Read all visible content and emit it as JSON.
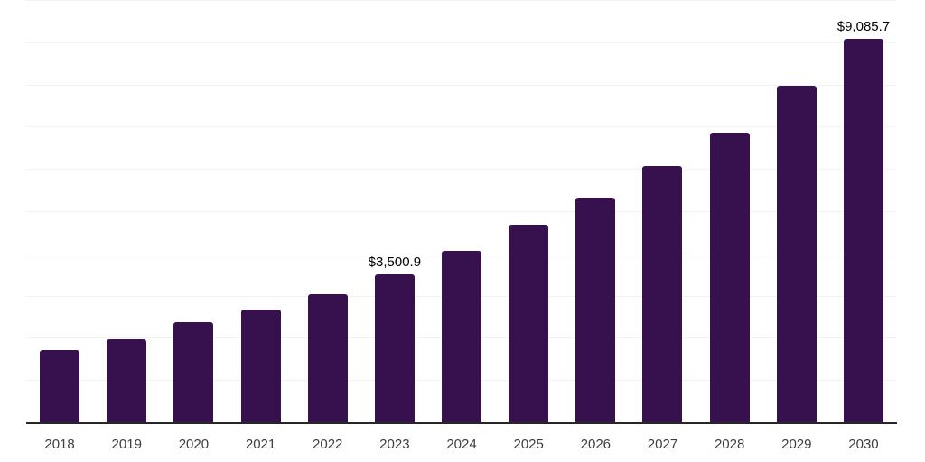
{
  "chart_data": {
    "type": "bar",
    "title": "",
    "xlabel": "",
    "ylabel": "",
    "categories": [
      "2018",
      "2019",
      "2020",
      "2021",
      "2022",
      "2023",
      "2024",
      "2025",
      "2026",
      "2027",
      "2028",
      "2029",
      "2030"
    ],
    "values": [
      1705,
      1960,
      2365,
      2665,
      3025,
      3500.9,
      4070,
      4690,
      5330,
      6075,
      6865,
      7970,
      9085.7
    ],
    "data_labels": {
      "2023": "$3,500.9",
      "2030": "$9,085.7"
    },
    "ylim": [
      0,
      10000
    ],
    "gridline_step": 1000,
    "grid": "horizontal",
    "legend": "none",
    "colors": {
      "bar": "#36114D",
      "axis_line": "#262626",
      "gridline": "#f2f2f2",
      "data_label": "#000000",
      "tick_label": "#3d3d3d",
      "background": "#ffffff"
    }
  }
}
